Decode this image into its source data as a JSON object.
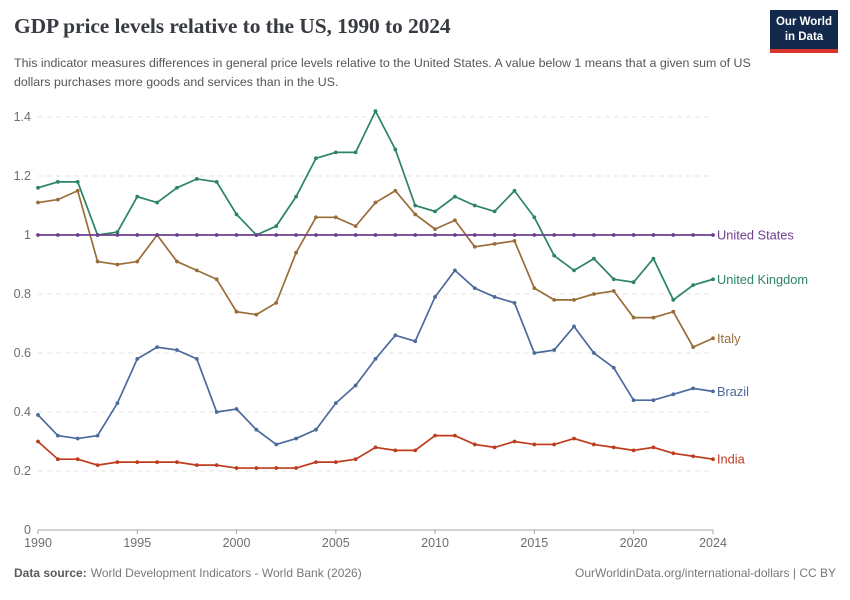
{
  "header": {
    "title": "GDP price levels relative to the US, 1990 to 2024",
    "subtitle": "This indicator measures differences in general price levels relative to the United States. A value below 1 means that a given sum of US dollars purchases more goods and services than in the US.",
    "logo": {
      "line1": "Our World",
      "line2": "in Data",
      "background_color": "#12294B",
      "accent_color": "#D8352E"
    }
  },
  "footer": {
    "datasource_label": "Data source:",
    "datasource_value": "World Development Indicators - World Bank (2026)",
    "attribution": "OurWorldinData.org/international-dollars | CC BY"
  },
  "chart_data": {
    "type": "line",
    "title": "GDP price levels relative to the US, 1990 to 2024",
    "xlabel": "",
    "ylabel": "",
    "xlim": [
      1990,
      2024
    ],
    "ylim": [
      0,
      1.45
    ],
    "grid": "horizontal-dashed",
    "legend_position": "right-end-labels",
    "x": [
      1990,
      1991,
      1992,
      1993,
      1994,
      1995,
      1996,
      1997,
      1998,
      1999,
      2000,
      2001,
      2002,
      2003,
      2004,
      2005,
      2006,
      2007,
      2008,
      2009,
      2010,
      2011,
      2012,
      2013,
      2014,
      2015,
      2016,
      2017,
      2018,
      2019,
      2020,
      2021,
      2022,
      2023,
      2024
    ],
    "x_tick_labels": [
      1990,
      1995,
      2000,
      2005,
      2010,
      2015,
      2020,
      2024
    ],
    "y_ticks": [
      0,
      0.2,
      0.4,
      0.6,
      0.8,
      1,
      1.2,
      1.4
    ],
    "series": [
      {
        "name": "United States",
        "color": "#6D3E91",
        "values": [
          1,
          1,
          1,
          1,
          1,
          1,
          1,
          1,
          1,
          1,
          1,
          1,
          1,
          1,
          1,
          1,
          1,
          1,
          1,
          1,
          1,
          1,
          1,
          1,
          1,
          1,
          1,
          1,
          1,
          1,
          1,
          1,
          1,
          1,
          1
        ]
      },
      {
        "name": "United Kingdom",
        "color": "#2C8465",
        "values": [
          1.16,
          1.18,
          1.18,
          1,
          1.01,
          1.13,
          1.11,
          1.16,
          1.19,
          1.18,
          1.07,
          1,
          1.03,
          1.13,
          1.26,
          1.28,
          1.28,
          1.42,
          1.29,
          1.1,
          1.08,
          1.13,
          1.1,
          1.08,
          1.15,
          1.06,
          0.93,
          0.88,
          0.92,
          0.85,
          0.84,
          0.92,
          0.78,
          0.83,
          0.85
        ]
      },
      {
        "name": "Italy",
        "color": "#996D39",
        "values": [
          1.11,
          1.12,
          1.15,
          0.91,
          0.9,
          0.91,
          1,
          0.91,
          0.88,
          0.85,
          0.74,
          0.73,
          0.77,
          0.94,
          1.06,
          1.06,
          1.03,
          1.11,
          1.15,
          1.07,
          1.02,
          1.05,
          0.96,
          0.97,
          0.98,
          0.82,
          0.78,
          0.78,
          0.8,
          0.81,
          0.72,
          0.72,
          0.74,
          0.62,
          0.65
        ]
      },
      {
        "name": "Brazil",
        "color": "#4C6A9C",
        "values": [
          0.39,
          0.32,
          0.31,
          0.32,
          0.43,
          0.58,
          0.62,
          0.61,
          0.58,
          0.4,
          0.41,
          0.34,
          0.29,
          0.31,
          0.34,
          0.43,
          0.49,
          0.58,
          0.66,
          0.64,
          0.79,
          0.88,
          0.82,
          0.79,
          0.77,
          0.6,
          0.61,
          0.69,
          0.6,
          0.55,
          0.44,
          0.44,
          0.46,
          0.48,
          0.47
        ]
      },
      {
        "name": "India",
        "color": "#BE3C1E",
        "values": [
          0.3,
          0.24,
          0.24,
          0.22,
          0.23,
          0.23,
          0.23,
          0.23,
          0.22,
          0.22,
          0.21,
          0.21,
          0.21,
          0.21,
          0.23,
          0.23,
          0.24,
          0.28,
          0.27,
          0.27,
          0.32,
          0.32,
          0.29,
          0.28,
          0.3,
          0.29,
          0.29,
          0.31,
          0.29,
          0.28,
          0.27,
          0.28,
          0.26,
          0.25,
          0.24
        ]
      }
    ]
  }
}
